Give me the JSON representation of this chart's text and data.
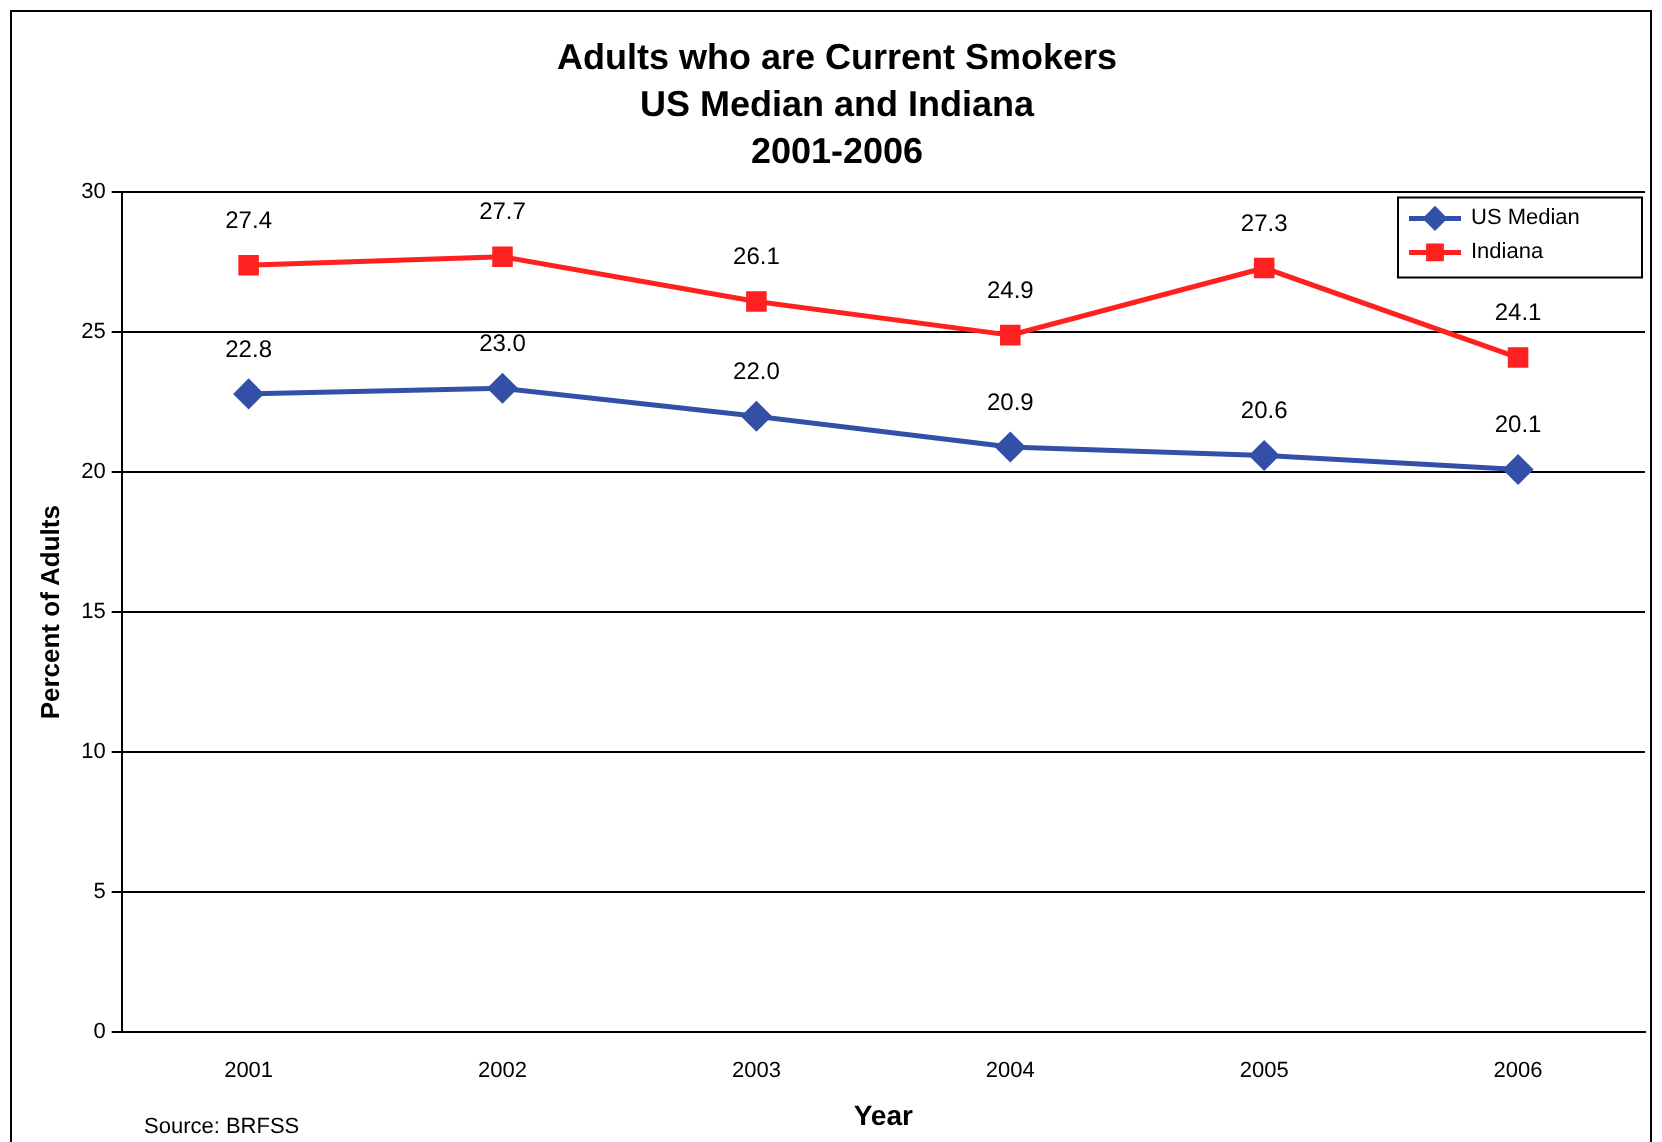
{
  "chart_data": {
    "type": "line",
    "title": "Adults who are Current Smokers\nUS Median and Indiana\n2001-2006",
    "xlabel": "Year",
    "ylabel": "Percent of Adults",
    "categories": [
      "2001",
      "2002",
      "2003",
      "2004",
      "2005",
      "2006"
    ],
    "series": [
      {
        "name": "US Median",
        "color": "#3350a8",
        "marker": "diamond",
        "values": [
          22.8,
          23.0,
          22.0,
          20.9,
          20.6,
          20.1
        ],
        "value_labels": [
          "22.8",
          "23.0",
          "22.0",
          "20.9",
          "20.6",
          "20.1"
        ]
      },
      {
        "name": "Indiana",
        "color": "#ff2020",
        "marker": "square",
        "values": [
          27.4,
          27.7,
          26.1,
          24.9,
          27.3,
          24.1
        ],
        "value_labels": [
          "27.4",
          "27.7",
          "26.1",
          "24.9",
          "27.3",
          "24.1"
        ]
      }
    ],
    "ylim": [
      0,
      30
    ],
    "yticks": [
      0,
      5,
      10,
      15,
      20,
      25,
      30
    ],
    "grid": "y",
    "legend": "top right",
    "annotations": [
      "Source: BRFSS"
    ]
  }
}
